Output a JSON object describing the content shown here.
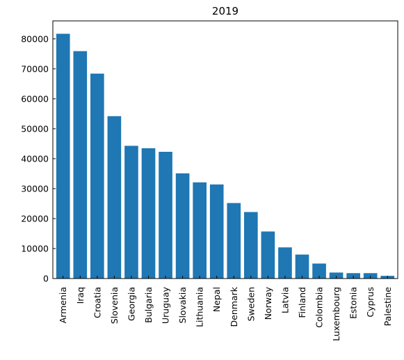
{
  "chart_data": {
    "type": "bar",
    "title": "2019",
    "xlabel": "",
    "ylabel": "",
    "categories": [
      "Armenia",
      "Iraq",
      "Croatia",
      "Slovenia",
      "Georgia",
      "Bulgaria",
      "Uruguay",
      "Slovakia",
      "Lithuania",
      "Nepal",
      "Denmark",
      "Sweden",
      "Norway",
      "Latvia",
      "Finland",
      "Colombia",
      "Luxembourg",
      "Estonia",
      "Cyprus",
      "Palestine"
    ],
    "values": [
      81700,
      75900,
      68400,
      54200,
      44300,
      43500,
      42300,
      35100,
      32100,
      31400,
      25200,
      22200,
      15700,
      10400,
      8000,
      5000,
      2000,
      1800,
      1800,
      900
    ],
    "ylim": [
      0,
      86000
    ],
    "yticks": [
      0,
      10000,
      20000,
      30000,
      40000,
      50000,
      60000,
      70000,
      80000
    ],
    "bar_color": "#1f77b4",
    "grid": false,
    "legend": "none"
  }
}
